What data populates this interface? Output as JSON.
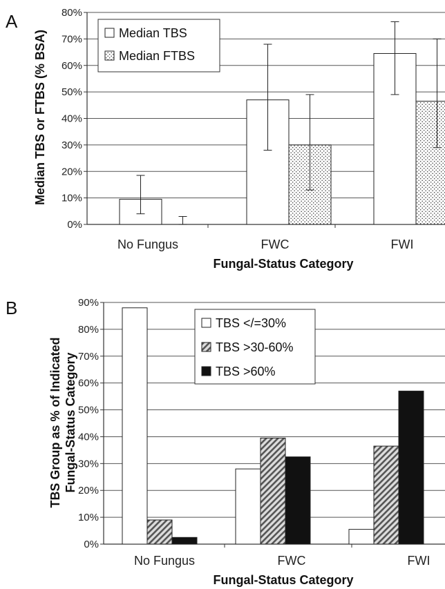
{
  "chart_data": [
    {
      "panel": "A",
      "type": "bar",
      "categories": [
        "No Fungus",
        "FWC",
        "FWI"
      ],
      "series": [
        {
          "name": "Median TBS",
          "values": [
            9.5,
            47,
            64.5
          ],
          "error_low": [
            4,
            28,
            49
          ],
          "error_high": [
            18.5,
            68,
            76.5
          ],
          "fill": "white"
        },
        {
          "name": "Median FTBS",
          "values": [
            null,
            30,
            46.5
          ],
          "error_low": [
            0,
            13,
            29
          ],
          "error_high": [
            3,
            49,
            70
          ],
          "fill": "dots"
        }
      ],
      "ylabel": "Median TBS or FTBS (% BSA)",
      "xlabel": "Fungal-Status Category",
      "ylim": [
        0,
        80
      ],
      "yticks": [
        "0%",
        "10%",
        "20%",
        "30%",
        "40%",
        "50%",
        "60%",
        "70%",
        "80%"
      ],
      "grid": true,
      "legend": "top-left"
    },
    {
      "panel": "B",
      "type": "bar",
      "categories": [
        "No Fungus",
        "FWC",
        "FWI"
      ],
      "series": [
        {
          "name": "TBS </=30%",
          "values": [
            88,
            28,
            5.5
          ],
          "fill": "white"
        },
        {
          "name": "TBS >30-60%",
          "values": [
            9,
            39.5,
            36.5
          ],
          "fill": "hatch"
        },
        {
          "name": "TBS >60%",
          "values": [
            2.5,
            32.5,
            57
          ],
          "fill": "black"
        }
      ],
      "ylabel": "TBS Group as % of Indicated Fungal-Status Category",
      "ylabel_lines": [
        "TBS Group as % of Indicated",
        "Fungal-Status Category"
      ],
      "xlabel": "Fungal-Status Category",
      "ylim": [
        0,
        90
      ],
      "yticks": [
        "0%",
        "10%",
        "20%",
        "30%",
        "40%",
        "50%",
        "60%",
        "70%",
        "80%",
        "90%"
      ],
      "grid": true,
      "legend": "top-center"
    }
  ]
}
